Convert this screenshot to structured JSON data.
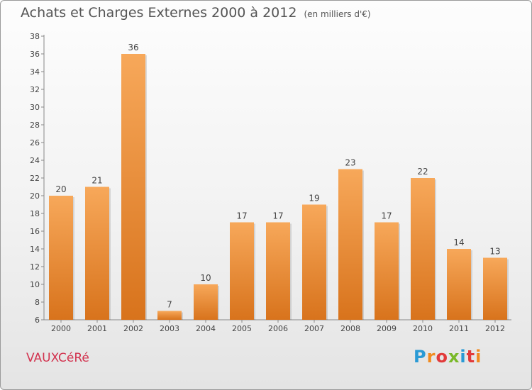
{
  "chart_data": {
    "type": "bar",
    "title": "Achats et Charges Externes 2000 à 2012",
    "subtitle": "(en milliers d'€)",
    "categories": [
      "2000",
      "2001",
      "2002",
      "2003",
      "2004",
      "2005",
      "2006",
      "2007",
      "2008",
      "2009",
      "2010",
      "2011",
      "2012"
    ],
    "values": [
      20,
      21,
      36,
      7,
      10,
      17,
      17,
      19,
      23,
      17,
      22,
      14,
      13
    ],
    "ylim": [
      6,
      38
    ],
    "yticks": [
      6,
      8,
      10,
      12,
      14,
      16,
      18,
      20,
      22,
      24,
      26,
      28,
      30,
      32,
      34,
      36,
      38
    ],
    "grid": false,
    "bar_color_top": "#f7a85a",
    "bar_color_bottom": "#d8731c"
  },
  "footer": {
    "commune": "VAUXCéRé",
    "brand": "Proxiti",
    "brand_colors": [
      "#2a9ad5",
      "#f18a1f",
      "#e23a3a",
      "#7ab929",
      "#2a9ad5",
      "#e23a3a",
      "#f18a1f"
    ]
  }
}
